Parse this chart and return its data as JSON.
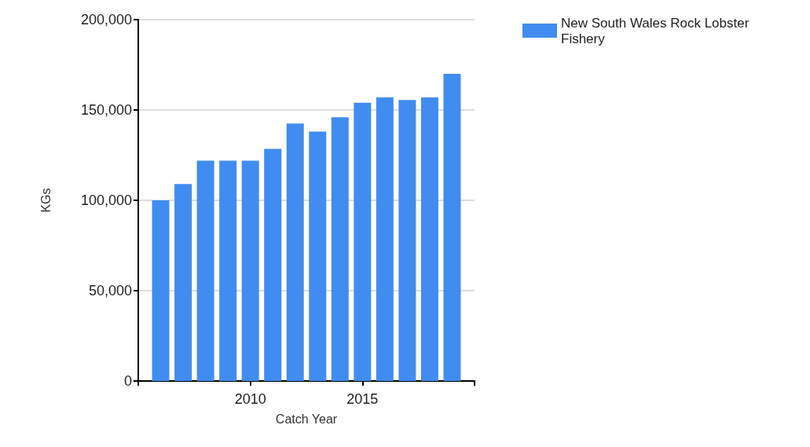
{
  "chart_data": {
    "type": "bar",
    "xlabel": "Catch Year",
    "ylabel": "KGs",
    "x": [
      2006,
      2007,
      2008,
      2009,
      2010,
      2011,
      2012,
      2013,
      2014,
      2015,
      2016,
      2017,
      2018,
      2019
    ],
    "series": [
      {
        "name": "New South Wales Rock Lobster\nFishery",
        "color": "#418cf0",
        "values": [
          100000,
          109000,
          122000,
          122000,
          122000,
          128500,
          142500,
          138000,
          146000,
          154000,
          157000,
          155500,
          157000,
          170000
        ]
      }
    ],
    "xlim": [
      2005,
      2020
    ],
    "xticks": [
      {
        "value": 2005,
        "label": null
      },
      2010,
      2015,
      {
        "value": 2020,
        "label": null
      }
    ],
    "ylim": [
      0,
      200000
    ],
    "yticks": [
      0,
      {
        "value": 50000,
        "label": "50,000"
      },
      {
        "value": 100000,
        "label": "100,000"
      },
      {
        "value": 150000,
        "label": "150,000"
      },
      {
        "value": 200000,
        "label": "200,000"
      }
    ],
    "grid": "y",
    "legend": "top right"
  }
}
